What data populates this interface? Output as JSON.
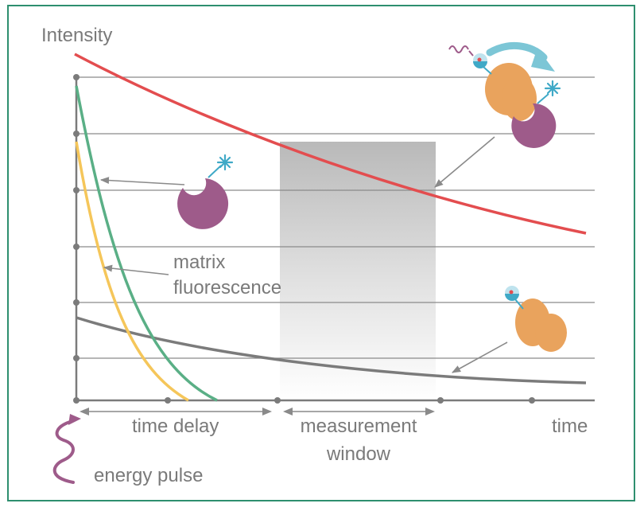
{
  "y_axis_label": "Intensity",
  "x_axis_label": "time",
  "matrix_label_line1": "matrix",
  "matrix_label_line2": "fluorescence",
  "time_delay_label": "time delay",
  "window_label_line1": "measurement",
  "window_label_line2": "window",
  "energy_pulse_label": "energy pulse",
  "colors": {
    "frame": "#2e8f6f",
    "long_lifetime_curve": "#e34d4f",
    "short_lifetime_curve_green": "#5aaf86",
    "short_lifetime_curve_yellow": "#f5c65a",
    "background_curve": "#7b7b7b",
    "molecule_purple": "#9e5b8a",
    "protein_orange": "#e9a35d",
    "fluorophore_cyan": "#3fa9c7",
    "arrow_blue": "#7cc6d6",
    "gridline": "#8a8a8a"
  },
  "icons": [
    "energy-pulse-wave-icon",
    "free-labeled-molecule-icon",
    "bound-complex-icon",
    "unbound-protein-icon",
    "transfer-arrow-icon"
  ]
}
